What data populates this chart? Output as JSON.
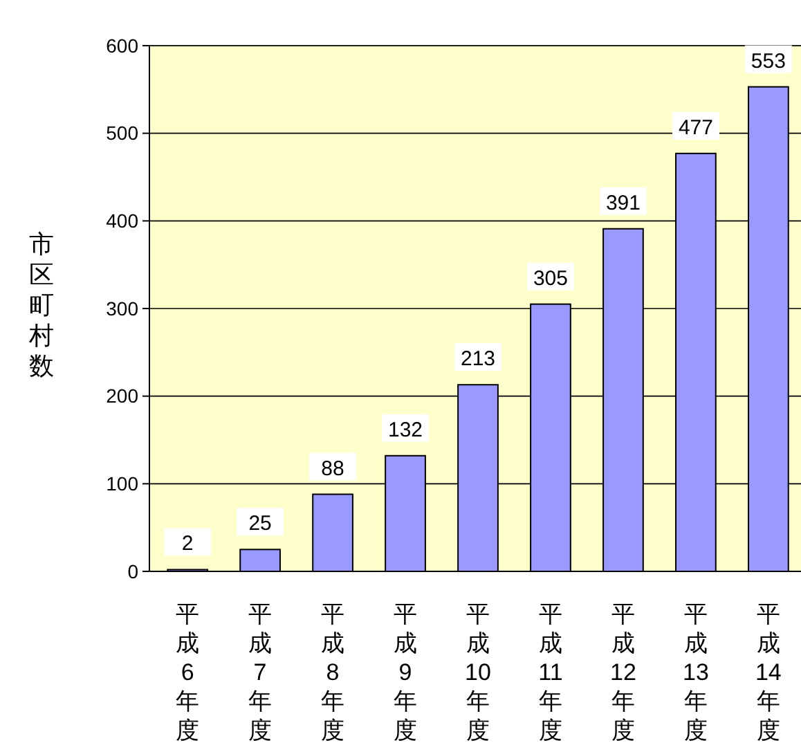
{
  "chart_data": {
    "type": "bar",
    "ylabel": "市区町村数",
    "categories": [
      "平成6年度",
      "平成7年度",
      "平成8年度",
      "平成9年度",
      "平成10年度",
      "平成11年度",
      "平成12年度",
      "平成13年度",
      "平成14年度"
    ],
    "values": [
      2,
      25,
      88,
      132,
      213,
      305,
      391,
      477,
      553
    ],
    "color": "#9999ff",
    "ylim": [
      0,
      600
    ],
    "yticks": [
      0,
      100,
      200,
      300,
      400,
      500,
      600
    ],
    "grid": "y",
    "data_labels": true
  }
}
